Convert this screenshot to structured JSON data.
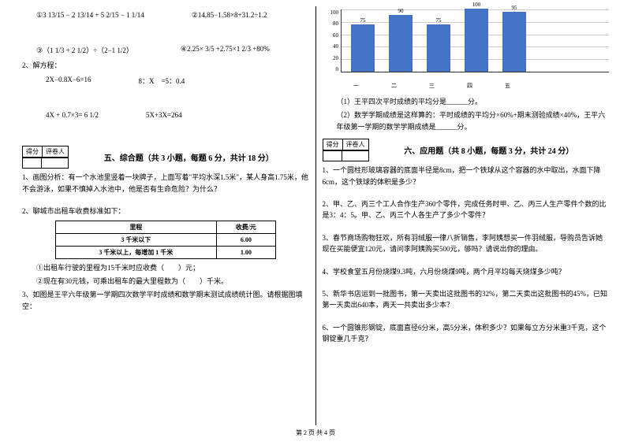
{
  "left": {
    "q1a": "①3 13/15 − 2 13/14 + 5 2/15 − 1 1/14",
    "q1b": "②14.85−1.58×8+31.2÷1.2",
    "q2a": "③（1 1/3 + 2 1/2）÷（2−1 1/2）",
    "q2b": "④2.25× 3/5 +2.75×1 2/3 +80%",
    "sec2": "2、解方程：",
    "eq1a": "2X−0.8X−6=16",
    "eq1b": "8：X　=5：0.4",
    "eq2a": "4X + 0.7×3= 6 1/2",
    "eq2b": "5X+3X=264",
    "score_l": "得分",
    "score_r": "评卷人",
    "sec5_title": "五、综合题（共 3 小题，每题 6 分，共计 18 分）",
    "p5_1": "1、画图分析：有一个水池里竖着一块牌子，上面写着\"平均水深1.5米\"，某人身高1.75米，他不会游泳，如果不慎掉入水池中，他是否有生命危险？为什么？",
    "p5_2": "2、聊城市出租车收费标准如下：",
    "table": {
      "headers": [
        "里程",
        "收费/元"
      ],
      "rows": [
        [
          "3 千米以下",
          "6.00"
        ],
        [
          "3 千米以上，每增加 1 千米",
          "1.00"
        ]
      ]
    },
    "p5_2a": "①出租车行驶的里程为15千米时应收费（　　）元；",
    "p5_2b": "②现在有30元钱，可乘出租车的最大里程数为（　　）千米。",
    "p5_3": "3、如图是王平六年级第一学期四次数学平时成绩和数学期末测试成绩统计图。请根据图填空："
  },
  "right": {
    "chart": {
      "ytick": [
        "100",
        "80",
        "60",
        "40",
        "20",
        "0"
      ],
      "values": [
        75,
        90,
        75,
        100,
        95
      ],
      "xlabels": [
        "一",
        "二",
        "三",
        "四",
        "五"
      ],
      "bar_color": "#4472c4",
      "grid_color": "#cccccc",
      "ymax": 100
    },
    "r1": "（1）王平四次平时成绩的平均分是______分。",
    "r2": "（2）数学学期成绩是这样算的：平时成绩的平均分×60%+期末测验成绩×40%，王平六年级第一学期的数学学期成绩是______分。",
    "score_l": "得分",
    "score_r": "评卷人",
    "sec6_title": "六、应用题（共 8 小题，每题 3 分，共计 24 分）",
    "p1": "1、一个圆柱形玻璃容器的底面半径是8cm，把一个铁球从这个容器的水中取出，水面下降6cm，这个铁球的体积是多少？",
    "p2": "2、甲、乙、丙三个工人合作生产360个零件，完成任务时甲、乙、丙三人生产零件个数的比是3：4：5。甲、乙、丙三个人各生产了多少个零件？",
    "p3": "3、春节商场购物狂欢，所有羽绒服一律八折销售，李阿姨想买一件羽绒服，导购员告诉她现在买能便宜120元，请问李阿姨购买500元，够吗？请说出你的理由。",
    "p4": "4、学校食堂五月份烧煤9.3吨，六月份烧煤9吨，两个月平均每天烧煤多少吨？",
    "p5": "5、新华书店运到一批图书，第一天卖出这批图书的32%，第二天卖出这批图书的45%，已知第一天卖出640本，两天一共卖出多少本？",
    "p6": "6、一个圆锥形钢锭，底面直径6分米，高5分米，体积多少？如果每立方分米重3千克，这个钢锭重几千克？"
  },
  "footer": "第 2 页 共 4 页"
}
